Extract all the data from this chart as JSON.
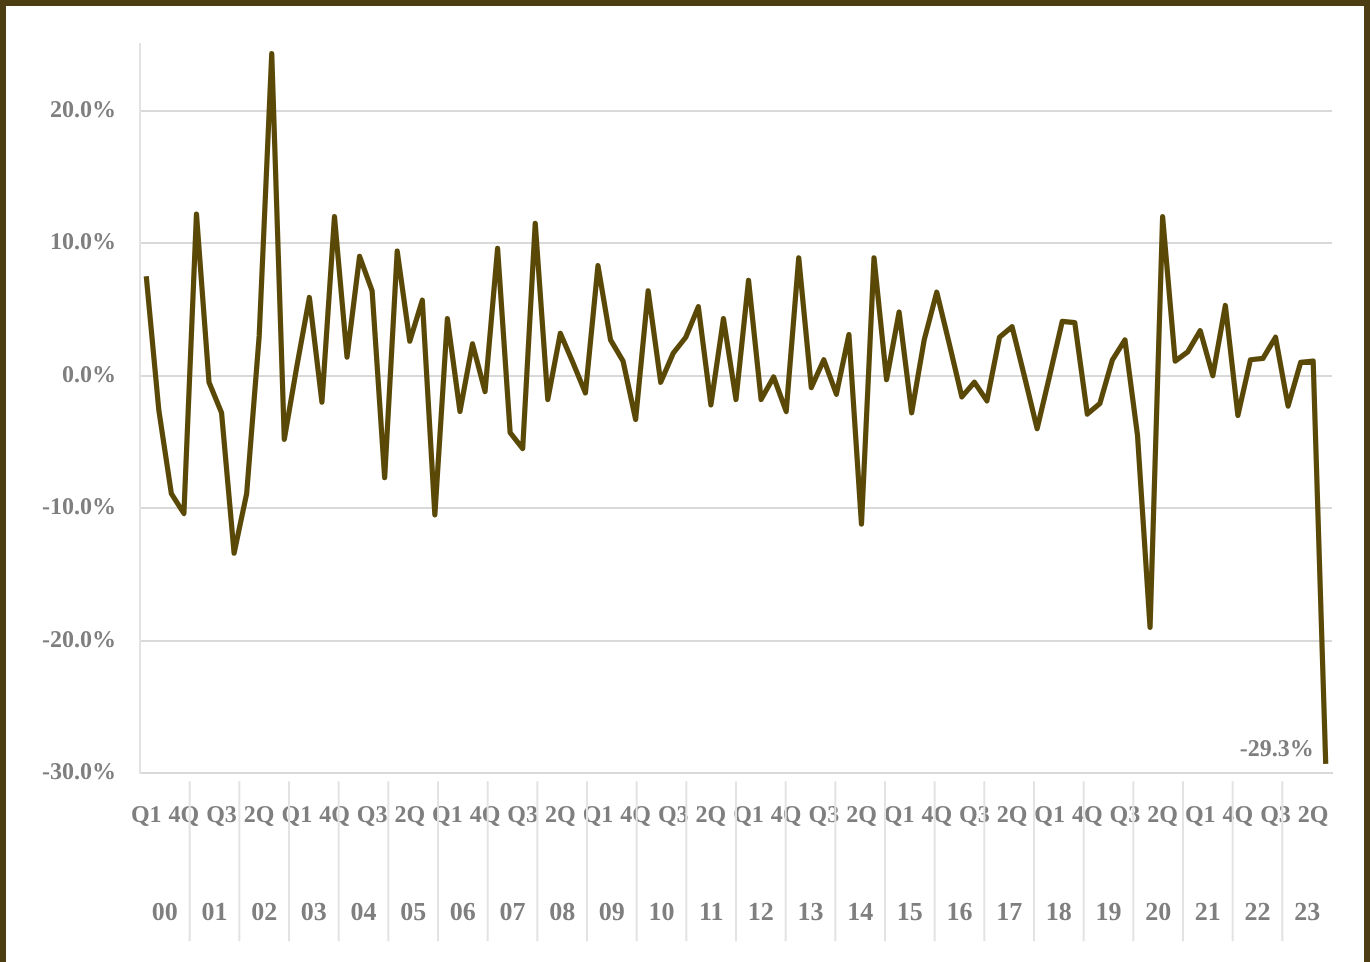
{
  "chart_data": {
    "type": "line",
    "categories": [
      "Q1",
      null,
      null,
      "4Q",
      null,
      null,
      "Q3",
      null,
      null,
      "2Q",
      null,
      null,
      "Q1",
      null,
      null,
      "4Q",
      null,
      null,
      "Q3",
      null,
      null,
      "2Q",
      null,
      null,
      "Q1",
      null,
      null,
      "4Q",
      null,
      null,
      "Q3",
      null,
      null,
      "2Q",
      null,
      null,
      "Q1",
      null,
      null,
      "4Q",
      null,
      null,
      "Q3",
      null,
      null,
      "2Q",
      null,
      null,
      "Q1",
      null,
      null,
      "4Q",
      null,
      null,
      "Q3",
      null,
      null,
      "2Q",
      null,
      null,
      "Q1",
      null,
      null,
      "4Q",
      null,
      null,
      "Q3",
      null,
      null,
      "2Q",
      null,
      null,
      "Q1",
      null,
      null,
      "4Q",
      null,
      null,
      "Q3",
      null,
      null,
      "2Q",
      null,
      null,
      "Q1",
      null,
      null,
      "4Q",
      null,
      null,
      "Q3",
      null,
      null,
      "2Q",
      null
    ],
    "annotations": [
      "00",
      "01",
      "02",
      "03",
      "04",
      "05",
      "06",
      "07",
      "08",
      "09",
      "10",
      "11",
      "12",
      "13",
      "14",
      "15",
      "16",
      "17",
      "18",
      "19",
      "20",
      "21",
      "22",
      "23"
    ],
    "series": [
      {
        "color": "#5a4807",
        "values": [
          7.5,
          -2.6,
          -8.9,
          -10.4,
          12.2,
          -0.5,
          -2.8,
          -13.4,
          -8.9,
          3,
          24.3,
          -4.8,
          0.7,
          5.9,
          -2.0,
          12.0,
          1.4,
          9.0,
          6.4,
          -7.7,
          9.4,
          2.6,
          5.7,
          -10.5,
          4.3,
          -2.7,
          2.4,
          -1.2,
          9.6,
          -4.3,
          -5.5,
          11.5,
          -1.8,
          3.2,
          1.0,
          -1.3,
          8.3,
          2.7,
          1.1,
          -3.3,
          6.4,
          -0.5,
          1.7,
          2.9,
          5.2,
          -2.2,
          4.3,
          -1.8,
          7.2,
          -1.8,
          -0.1,
          -2.7,
          8.9,
          -0.9,
          1.2,
          -1.4,
          3.1,
          -11.2,
          8.9,
          -0.3,
          4.8,
          -2.8,
          2.7,
          6.3,
          2.4,
          -1.6,
          -0.5,
          -1.9,
          2.9,
          3.7,
          -0.1,
          -4.0,
          0,
          4.1,
          4.0,
          -2.9,
          -2.1,
          1.2,
          2.7,
          -4.5,
          -19.0,
          12.0,
          1.1,
          1.8,
          3.4,
          0,
          5.3,
          -3.0,
          1.2,
          1.3,
          2.9,
          -2.3,
          1.0,
          1.1,
          -29.3
        ],
        "value_labels": [
          null,
          null,
          null,
          null,
          null,
          null,
          null,
          null,
          null,
          null,
          null,
          null,
          null,
          null,
          null,
          null,
          null,
          null,
          null,
          null,
          null,
          null,
          null,
          null,
          null,
          null,
          null,
          null,
          null,
          null,
          null,
          null,
          null,
          null,
          null,
          null,
          null,
          null,
          null,
          null,
          null,
          null,
          null,
          null,
          null,
          null,
          null,
          null,
          null,
          null,
          null,
          null,
          null,
          null,
          null,
          null,
          null,
          null,
          null,
          null,
          null,
          null,
          null,
          null,
          null,
          null,
          null,
          null,
          null,
          null,
          null,
          null,
          null,
          null,
          null,
          null,
          null,
          null,
          null,
          null,
          null,
          null,
          null,
          null,
          null,
          null,
          null,
          null,
          null,
          null,
          null,
          null,
          null,
          null,
          "-29.3%"
        ]
      }
    ],
    "ylim": [
      -30,
      25
    ],
    "yticks": [
      {
        "value": -30,
        "label": "-30.0%"
      },
      {
        "value": -20,
        "label": "-20.0%"
      },
      {
        "value": -10,
        "label": "-10.0%"
      },
      {
        "value": 0,
        "label": "0.0%"
      },
      {
        "value": 10,
        "label": "10.0%"
      },
      {
        "value": 20,
        "label": "20.0%"
      }
    ],
    "grid": "y",
    "legend": false,
    "marker": "none",
    "line_style": "solid"
  }
}
